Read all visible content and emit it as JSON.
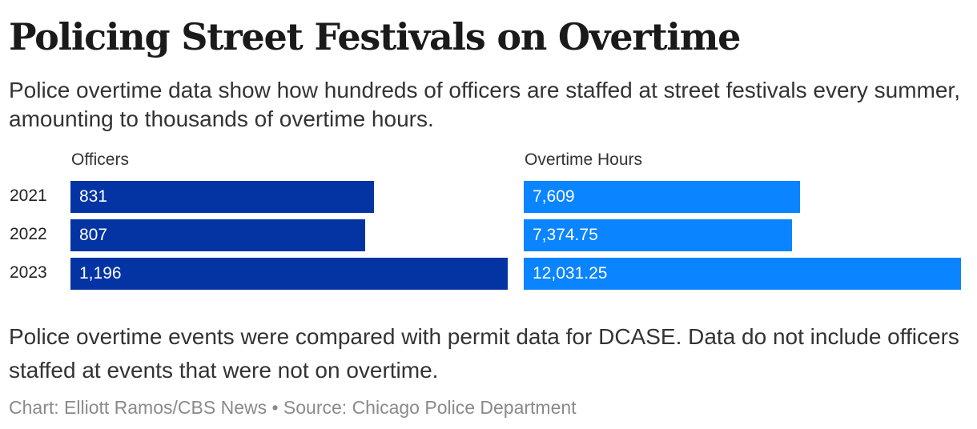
{
  "title": "Policing Street Festivals on Overtime",
  "subtitle": "Police overtime data show how hundreds of officers are staffed at street festivals every summer, amounting to thousands of overtime hours.",
  "note": "Police overtime events were compared with permit data for DCASE. Data do not include officers staffed at events that were not on overtime.",
  "credit": "Chart: Elliott Ramos/CBS News • Source: Chicago Police Department",
  "colors": {
    "officers_bar": "#0434a4",
    "hours_bar": "#0a84ff",
    "value_text": "#ffffff",
    "credit_text": "#8a8a8a"
  },
  "chart_data": {
    "type": "bar",
    "orientation": "horizontal",
    "categories": [
      "2021",
      "2022",
      "2023"
    ],
    "series": [
      {
        "name": "Officers",
        "values": [
          831,
          807,
          1196
        ],
        "labels": [
          "831",
          "807",
          "1,196"
        ]
      },
      {
        "name": "Overtime Hours",
        "values": [
          7609,
          7374.75,
          12031.25
        ],
        "labels": [
          "7,609",
          "7,374.75",
          "12,031.25"
        ]
      }
    ],
    "grid": false,
    "legend": "none"
  }
}
